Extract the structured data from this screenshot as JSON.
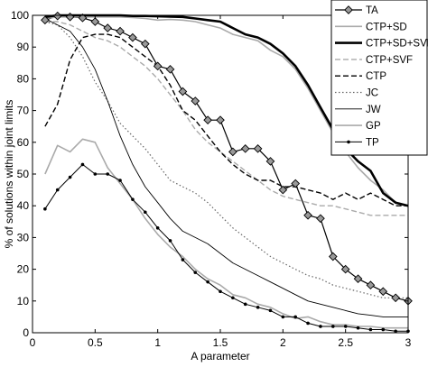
{
  "chart_data": {
    "type": "line",
    "xlabel": "A parameter",
    "ylabel": "% of solutions within joint limits",
    "xlim": [
      0,
      3
    ],
    "ylim": [
      0,
      100
    ],
    "xticks": [
      0,
      0.5,
      1,
      1.5,
      2,
      2.5,
      3
    ],
    "xtick_labels": [
      "0",
      "0.5",
      "1",
      "1.5",
      "2",
      "2.5",
      "3"
    ],
    "yticks": [
      0,
      10,
      20,
      30,
      40,
      50,
      60,
      70,
      80,
      90,
      100
    ],
    "ytick_labels": [
      "0",
      "10",
      "20",
      "30",
      "40",
      "50",
      "60",
      "70",
      "80",
      "90",
      "100"
    ],
    "grid": false,
    "legend_position": "top-right",
    "x": [
      0.1,
      0.2,
      0.3,
      0.4,
      0.5,
      0.6,
      0.7,
      0.8,
      0.9,
      1.0,
      1.1,
      1.2,
      1.3,
      1.4,
      1.5,
      1.6,
      1.7,
      1.8,
      1.9,
      2.0,
      2.1,
      2.2,
      2.3,
      2.4,
      2.5,
      2.6,
      2.7,
      2.8,
      2.9,
      3.0
    ],
    "series": [
      {
        "name": "TA",
        "color": "#000000",
        "dash": "solid",
        "width": 1.2,
        "marker": "diamond",
        "values": [
          98.5,
          99.8,
          99.5,
          99.2,
          98,
          96,
          95,
          93,
          91,
          84,
          83,
          76,
          73,
          67,
          67,
          57,
          58,
          58,
          54,
          45,
          47,
          37,
          36,
          24,
          20,
          17,
          15,
          13,
          11,
          10
        ]
      },
      {
        "name": "CTP+SD",
        "color": "#aaaaaa",
        "dash": "solid",
        "width": 1.6,
        "marker": "none",
        "values": [
          99,
          99.5,
          99.5,
          99.5,
          99.5,
          99.5,
          99.5,
          99.3,
          99,
          98.5,
          98.7,
          98.5,
          98,
          97,
          96,
          94,
          93,
          92,
          89,
          87,
          83,
          77,
          70,
          63,
          57,
          52,
          48,
          45,
          41,
          40
        ]
      },
      {
        "name": "CTP+SD+SVF",
        "color": "#000000",
        "dash": "solid",
        "width": 2.6,
        "marker": "none",
        "values": [
          99.5,
          100,
          100,
          100,
          100,
          100,
          100,
          99.8,
          99.8,
          99.7,
          99.6,
          99.5,
          99,
          98.5,
          98,
          96,
          94,
          93,
          91,
          88,
          84,
          78,
          71,
          64,
          58,
          54,
          51,
          44,
          41,
          40
        ]
      },
      {
        "name": "CTP+SVF",
        "color": "#aaaaaa",
        "dash": "dashed",
        "width": 1.4,
        "marker": "none",
        "values": [
          98,
          98,
          97,
          95,
          93,
          92,
          90,
          87,
          84,
          80,
          75,
          70,
          64,
          60,
          57,
          54,
          51,
          48,
          45,
          43,
          42,
          41,
          40,
          40,
          39,
          38,
          37,
          37,
          37,
          37
        ]
      },
      {
        "name": "CTP",
        "color": "#000000",
        "dash": "dashed",
        "width": 1.4,
        "marker": "none",
        "values": [
          65,
          72,
          86,
          93,
          94,
          94,
          93,
          90,
          87,
          84,
          78,
          70,
          67,
          62,
          57,
          53,
          50,
          48,
          48,
          46,
          46,
          45,
          44,
          42,
          44,
          42,
          44,
          42,
          40,
          40
        ]
      },
      {
        "name": "JC",
        "color": "#666666",
        "dash": "dotted",
        "width": 1.2,
        "marker": "none",
        "values": [
          98,
          97,
          93,
          87,
          79,
          73,
          66,
          62,
          58,
          53,
          48,
          46,
          44,
          41,
          37,
          33,
          30,
          27,
          24,
          22,
          20,
          18,
          17,
          15,
          14,
          13,
          12,
          11,
          11,
          11
        ]
      },
      {
        "name": "JW",
        "color": "#000000",
        "dash": "solid",
        "width": 0.9,
        "marker": "none",
        "values": [
          99,
          97,
          95,
          90,
          83,
          73,
          62,
          53,
          46,
          41,
          36,
          32,
          30,
          28,
          25,
          22,
          20,
          18,
          16,
          14,
          12,
          10,
          9,
          8,
          7,
          6,
          5.5,
          5,
          5,
          5
        ]
      },
      {
        "name": "GP",
        "color": "#aaaaaa",
        "dash": "solid",
        "width": 1.6,
        "marker": "none",
        "values": [
          50,
          59,
          57,
          61,
          60,
          52,
          47,
          42,
          36,
          31,
          27,
          24,
          20,
          17,
          15,
          12,
          11,
          9,
          8,
          6,
          4.5,
          5,
          3.5,
          2.5,
          2.5,
          2,
          2,
          1.5,
          1.5,
          1.5
        ]
      },
      {
        "name": "TP",
        "color": "#000000",
        "dash": "solid",
        "width": 1.0,
        "marker": "dot",
        "values": [
          39,
          45,
          49,
          53,
          50,
          50,
          48,
          42,
          38,
          33,
          29,
          23,
          19,
          16,
          13,
          11,
          9,
          8,
          7,
          5,
          5,
          3,
          2,
          2,
          2,
          1.5,
          1,
          1,
          0.5,
          0.5
        ]
      }
    ]
  }
}
